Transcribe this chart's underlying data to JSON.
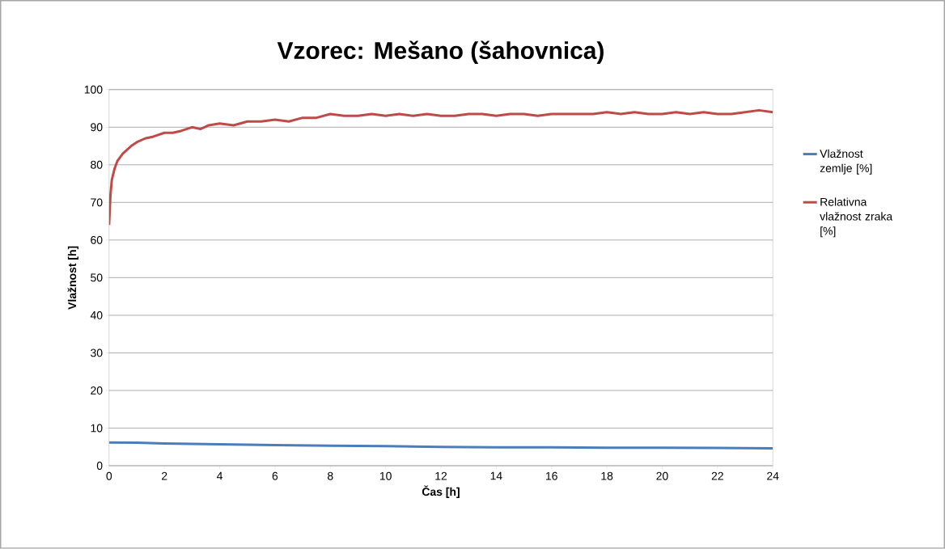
{
  "chart_data": {
    "type": "line",
    "title": "Vzorec: Mešano (šahovnica)",
    "xlabel": "Čas [h]",
    "ylabel": "Vlažnost [h]",
    "xlim": [
      0,
      24
    ],
    "xticks": [
      0,
      2,
      4,
      6,
      8,
      10,
      12,
      14,
      16,
      18,
      20,
      22,
      24
    ],
    "ylim": [
      0,
      100
    ],
    "yticks": [
      0,
      10,
      20,
      30,
      40,
      50,
      60,
      70,
      80,
      90,
      100
    ],
    "grid": "y",
    "legend": "right",
    "marker": "none",
    "line_style": "solid",
    "series": [
      {
        "name": "Vlažnost zemlje [%]",
        "color": "#4a7ebb",
        "x": [
          0,
          1,
          2,
          3,
          4,
          6,
          8,
          10,
          12,
          14,
          16,
          18,
          20,
          22,
          24
        ],
        "values": [
          6.2,
          6.1,
          5.9,
          5.8,
          5.7,
          5.5,
          5.3,
          5.2,
          5.0,
          4.9,
          4.9,
          4.8,
          4.8,
          4.7,
          4.6
        ]
      },
      {
        "name": "Relativna vlažnost zraka [%]",
        "color": "#be4b48",
        "x": [
          0,
          0.05,
          0.1,
          0.2,
          0.3,
          0.5,
          0.8,
          1.0,
          1.3,
          1.6,
          2.0,
          2.3,
          2.6,
          3.0,
          3.3,
          3.6,
          4.0,
          4.5,
          5.0,
          5.5,
          6.0,
          6.5,
          7.0,
          7.5,
          8.0,
          8.5,
          9.0,
          9.5,
          10.0,
          10.5,
          11.0,
          11.5,
          12.0,
          12.5,
          13.0,
          13.5,
          14.0,
          14.5,
          15.0,
          15.5,
          16.0,
          16.5,
          17.0,
          17.5,
          18.0,
          18.5,
          19.0,
          19.5,
          20.0,
          20.5,
          21.0,
          21.5,
          22.0,
          22.5,
          23.0,
          23.5,
          24.0
        ],
        "values": [
          64,
          72,
          76,
          79,
          81,
          83,
          85,
          86,
          87,
          87.5,
          88.5,
          88.5,
          89,
          90,
          89.5,
          90.5,
          91,
          90.5,
          91.5,
          91.5,
          92,
          91.5,
          92.5,
          92.5,
          93.5,
          93,
          93,
          93.5,
          93,
          93.5,
          93,
          93.5,
          93,
          93,
          93.5,
          93.5,
          93,
          93.5,
          93.5,
          93,
          93.5,
          93.5,
          93.5,
          93.5,
          94,
          93.5,
          94,
          93.5,
          93.5,
          94,
          93.5,
          94,
          93.5,
          93.5,
          94,
          94.5,
          94
        ]
      }
    ]
  }
}
